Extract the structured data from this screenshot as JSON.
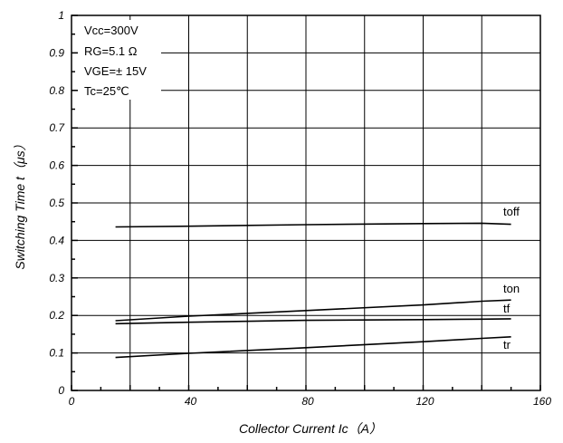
{
  "chart_data": {
    "type": "line",
    "xlabel": "Collector Current Ic（A）",
    "ylabel": "Switching Time t（μs）",
    "xlim": [
      0,
      160
    ],
    "ylim": [
      0,
      1
    ],
    "xticks": [
      0,
      40,
      80,
      120,
      160
    ],
    "xtick_labels": [
      "0",
      "40",
      "80",
      "120",
      "160"
    ],
    "yticks": [
      0,
      0.1,
      0.2,
      0.3,
      0.4,
      0.5,
      0.6,
      0.7,
      0.8,
      0.9,
      1
    ],
    "ytick_labels": [
      "0",
      "0.1",
      "0.2",
      "0.3",
      "0.4",
      "0.5",
      "0.6",
      "0.7",
      "0.8",
      "0.9",
      "1"
    ],
    "grid": true,
    "annotations": [
      "Vcc=300V",
      "RG=5.1 Ω",
      "VGE=± 15V",
      "Tc=25℃"
    ],
    "series": [
      {
        "name": "toff",
        "x": [
          15,
          40,
          80,
          120,
          140,
          150
        ],
        "y": [
          0.436,
          0.438,
          0.442,
          0.445,
          0.446,
          0.443
        ]
      },
      {
        "name": "ton",
        "x": [
          15,
          40,
          80,
          120,
          140,
          150
        ],
        "y": [
          0.186,
          0.198,
          0.213,
          0.228,
          0.238,
          0.241
        ]
      },
      {
        "name": "tf",
        "x": [
          15,
          40,
          80,
          120,
          140,
          150
        ],
        "y": [
          0.178,
          0.182,
          0.187,
          0.189,
          0.19,
          0.191
        ]
      },
      {
        "name": "tr",
        "x": [
          15,
          40,
          80,
          120,
          140,
          150
        ],
        "y": [
          0.088,
          0.099,
          0.114,
          0.13,
          0.139,
          0.143
        ]
      }
    ]
  }
}
